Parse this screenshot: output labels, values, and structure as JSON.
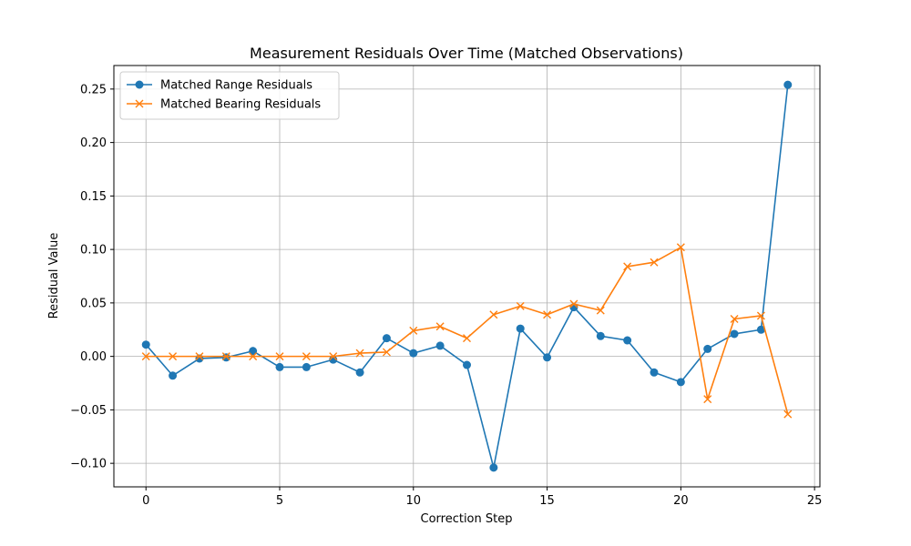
{
  "chart_data": {
    "type": "line",
    "title": "Measurement Residuals Over Time (Matched Observations)",
    "xlabel": "Correction Step",
    "ylabel": "Residual Value",
    "xlim": [
      -1.2,
      25.2
    ],
    "ylim": [
      -0.122,
      0.272
    ],
    "xticks": [
      0,
      5,
      10,
      15,
      20,
      25
    ],
    "yticks": [
      -0.1,
      -0.05,
      0.0,
      0.05,
      0.1,
      0.15,
      0.2,
      0.25
    ],
    "xtick_labels": [
      "0",
      "5",
      "10",
      "15",
      "20",
      "25"
    ],
    "ytick_labels": [
      "−0.10",
      "−0.05",
      "0.00",
      "0.05",
      "0.10",
      "0.15",
      "0.20",
      "0.25"
    ],
    "grid": true,
    "legend_position": "top-left",
    "x": [
      0,
      1,
      2,
      3,
      4,
      5,
      6,
      7,
      8,
      9,
      10,
      11,
      12,
      13,
      14,
      15,
      16,
      17,
      18,
      19,
      20,
      21,
      22,
      23,
      24
    ],
    "series": [
      {
        "name": "Matched Range Residuals",
        "color": "#1f77b4",
        "marker": "circle",
        "values": [
          0.011,
          -0.018,
          -0.002,
          -0.001,
          0.005,
          -0.01,
          -0.01,
          -0.003,
          -0.015,
          0.017,
          0.003,
          0.01,
          -0.008,
          -0.104,
          0.026,
          -0.001,
          0.046,
          0.019,
          0.015,
          -0.015,
          -0.024,
          0.007,
          0.021,
          0.025,
          0.254
        ]
      },
      {
        "name": "Matched Bearing Residuals",
        "color": "#ff7f0e",
        "marker": "x",
        "values": [
          0.0,
          0.0,
          0.0,
          0.0,
          0.0,
          0.0,
          0.0,
          0.0,
          0.003,
          0.004,
          0.024,
          0.028,
          0.017,
          0.039,
          0.047,
          0.039,
          0.049,
          0.043,
          0.084,
          0.088,
          0.102,
          -0.04,
          0.035,
          0.038,
          -0.054
        ]
      }
    ]
  }
}
